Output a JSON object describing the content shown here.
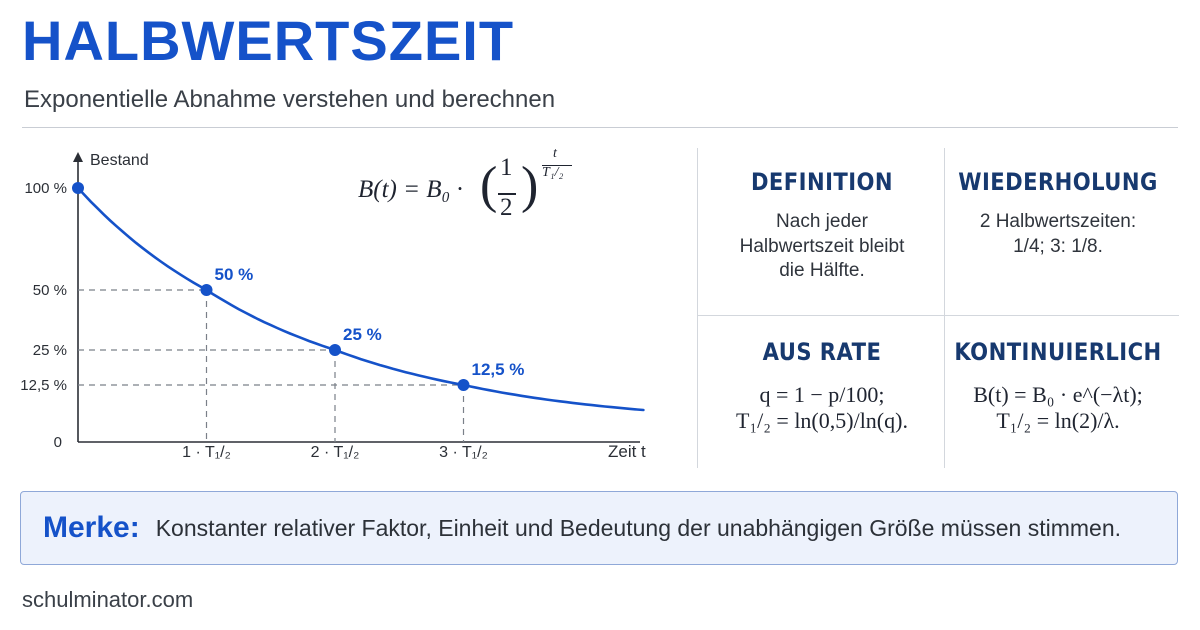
{
  "header": {
    "title": "HALBWERTSZEIT",
    "subtitle": "Exponentielle Abnahme verstehen und berechnen"
  },
  "formula": {
    "lhs": "B(t) = B₀ ·",
    "fraction_numerator": "1",
    "fraction_denominator": "2",
    "exponent_numerator": "t",
    "exponent_denominator": "T₁/₂"
  },
  "chart_data": {
    "type": "line",
    "xlabel": "Zeit t",
    "ylabel": "Bestand",
    "origin_label": "0",
    "x_tick_labels": [
      "1 · T₁/₂",
      "2 · T₁/₂",
      "3 · T₁/₂"
    ],
    "y_tick_labels": [
      "100 %",
      "50 %",
      "25 %",
      "12,5 %"
    ],
    "xlim": [
      0,
      4.4
    ],
    "ylim": [
      0,
      100
    ],
    "grid": false,
    "series": [
      {
        "x": [
          0,
          0.5,
          1,
          1.5,
          2,
          2.5,
          3,
          3.5,
          4,
          4.4
        ],
        "values": [
          100,
          70.7,
          50,
          35.4,
          25,
          17.7,
          12.5,
          8.8,
          6.25,
          4.7
        ]
      }
    ],
    "points": [
      {
        "x": 0,
        "y": 100,
        "label": ""
      },
      {
        "x": 1,
        "y": 50,
        "label": "50 %"
      },
      {
        "x": 2,
        "y": 25,
        "label": "25 %"
      },
      {
        "x": 3,
        "y": 12.5,
        "label": "12,5 %"
      }
    ]
  },
  "cards": {
    "definition": {
      "title": "DEFINITION",
      "text": "Nach jeder Halbwertszeit bleibt die Hälfte."
    },
    "wiederholung": {
      "title": "WIEDERHOLUNG",
      "text": "2 Halbwertszeiten: 1/4; 3: 1/8."
    },
    "aus_rate": {
      "title": "AUS RATE",
      "line1": "q = 1 − p/100;",
      "line2": "T₁/₂ = ln(0,5)/ln(q)."
    },
    "kontinuierlich": {
      "title": "KONTINUIERLICH",
      "line1": "B(t) = B₀ · e^(−λt);",
      "line2": "T₁/₂ = ln(2)/λ."
    }
  },
  "merke": {
    "label": "Merke:",
    "text": "Konstanter relativer Faktor, Einheit und Bedeutung der unabhängigen Größe müssen stimmen."
  },
  "footer": {
    "site": "schulminator.com"
  },
  "colors": {
    "accent": "#1552c9",
    "heading": "#17396f",
    "guide": "#7a8089"
  }
}
